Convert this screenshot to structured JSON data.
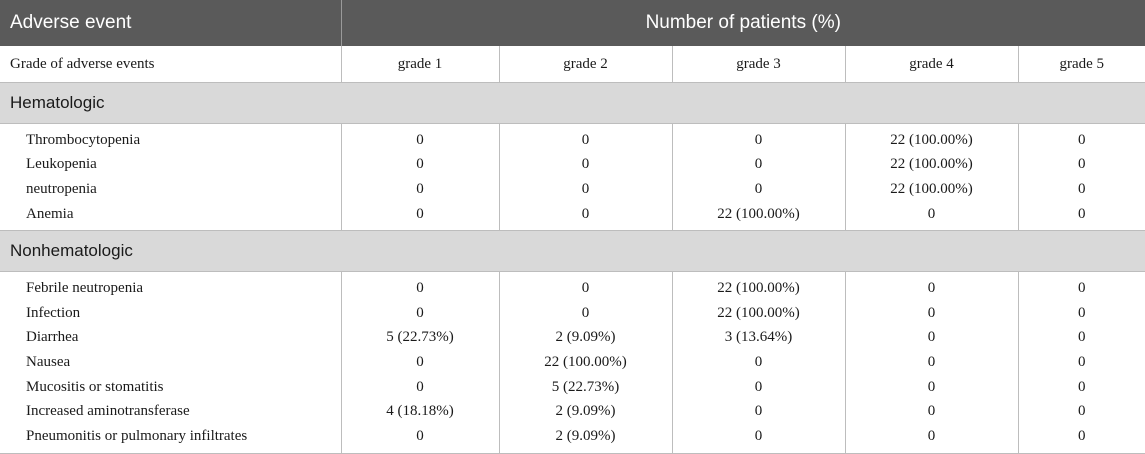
{
  "header": {
    "col1": "Adverse event",
    "col2": "Number of patients (%)"
  },
  "subheader": [
    "Grade of adverse events",
    "grade 1",
    "grade 2",
    "grade 3",
    "grade 4",
    "grade 5"
  ],
  "sections": [
    {
      "title": "Hematologic",
      "rows": [
        [
          "Thrombocytopenia",
          "0",
          "0",
          "0",
          "22 (100.00%)",
          "0"
        ],
        [
          "Leukopenia",
          "0",
          "0",
          "0",
          "22 (100.00%)",
          "0"
        ],
        [
          "neutropenia",
          "0",
          "0",
          "0",
          "22 (100.00%)",
          "0"
        ],
        [
          "Anemia",
          "0",
          "0",
          "22 (100.00%)",
          "0",
          "0"
        ]
      ]
    },
    {
      "title": "Nonhematologic",
      "rows": [
        [
          "Febrile neutropenia",
          "0",
          "0",
          "22 (100.00%)",
          "0",
          "0"
        ],
        [
          "Infection",
          "0",
          "0",
          "22 (100.00%)",
          "0",
          "0"
        ],
        [
          "Diarrhea",
          "5 (22.73%)",
          "2 (9.09%)",
          "3 (13.64%)",
          "0",
          "0"
        ],
        [
          "Nausea",
          "0",
          "22 (100.00%)",
          "0",
          "0",
          "0"
        ],
        [
          "Mucositis or stomatitis",
          "0",
          "5 (22.73%)",
          "0",
          "0",
          "0"
        ],
        [
          "Increased aminotransferase",
          "4 (18.18%)",
          "2 (9.09%)",
          "0",
          "0",
          "0"
        ],
        [
          "Pneumonitis or pulmonary infiltrates",
          "0",
          "2 (9.09%)",
          "0",
          "0",
          "0"
        ]
      ]
    }
  ]
}
